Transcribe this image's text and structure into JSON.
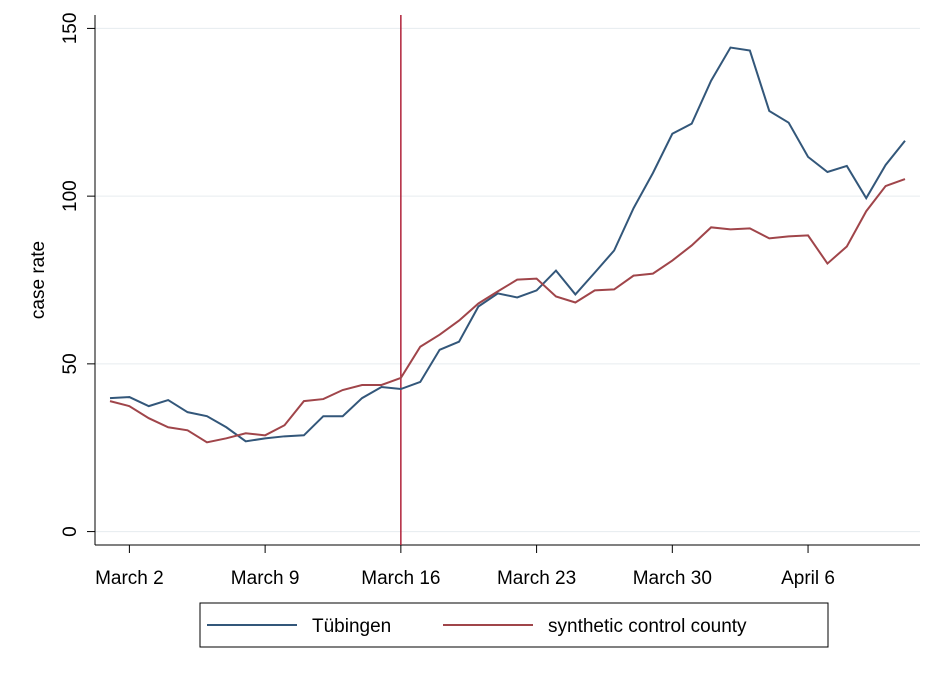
{
  "chart_data": {
    "type": "line",
    "y_label": "case rate",
    "categories": [
      null,
      "March 2",
      null,
      null,
      null,
      null,
      null,
      null,
      "March 9",
      null,
      null,
      null,
      null,
      null,
      null,
      "March 16",
      null,
      null,
      null,
      null,
      null,
      null,
      "March 23",
      null,
      null,
      null,
      null,
      null,
      null,
      "March 30",
      null,
      null,
      null,
      null,
      null,
      null,
      "April 6",
      null,
      null,
      null,
      null,
      null
    ],
    "series": [
      {
        "name": "Tübingen",
        "color": "#33577a",
        "values": [
          39.8,
          40.1,
          37.4,
          39.2,
          35.6,
          34.4,
          31.1,
          26.9,
          27.8,
          28.4,
          28.7,
          34.4,
          34.4,
          39.8,
          43.1,
          42.5,
          44.6,
          54.2,
          56.6,
          67.1,
          71.0,
          69.8,
          71.9,
          77.8,
          70.7,
          77.2,
          83.8,
          96.4,
          106.9,
          118.6,
          121.6,
          134.4,
          144.3,
          143.4,
          125.4,
          121.9,
          111.7,
          107.2,
          109.0,
          99.4,
          109.3,
          116.5
        ]
      },
      {
        "name": "synthetic control county",
        "color": "#a0454a",
        "values": [
          38.9,
          37.4,
          33.8,
          31.1,
          30.2,
          26.6,
          27.8,
          29.3,
          28.7,
          31.7,
          38.9,
          39.5,
          42.2,
          43.7,
          43.7,
          45.8,
          55.1,
          58.7,
          62.9,
          68.0,
          71.6,
          75.1,
          75.4,
          70.1,
          68.3,
          71.9,
          72.2,
          76.3,
          76.9,
          80.8,
          85.3,
          90.7,
          90.1,
          90.4,
          87.4,
          88.0,
          88.3,
          79.9,
          85.0,
          95.5,
          103.0,
          105.1
        ]
      }
    ],
    "vline": {
      "category": 15,
      "color": "#b0223a"
    },
    "ylim": [
      -4,
      154
    ],
    "yticks": [
      0,
      50,
      100,
      150
    ],
    "grid": true,
    "legend": "bottom"
  }
}
